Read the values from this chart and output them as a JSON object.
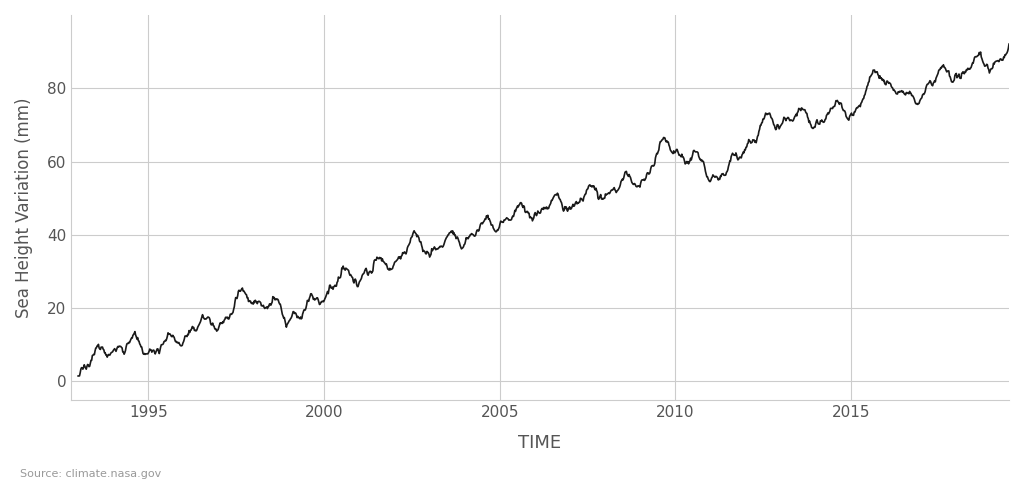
{
  "title": "",
  "xlabel": "TIME",
  "ylabel": "Sea Height Variation (mm)",
  "source_text": "Source: climate.nasa.gov",
  "line_color": "#1a1a1a",
  "line_width": 1.2,
  "background_color": "#ffffff",
  "grid_color": "#cccccc",
  "tick_color": "#555555",
  "label_color": "#555555",
  "xlim": [
    1992.8,
    2019.5
  ],
  "ylim": [
    -5,
    100
  ],
  "yticks": [
    0,
    20,
    40,
    60,
    80
  ],
  "xticks": [
    1995,
    2000,
    2005,
    2010,
    2015
  ]
}
